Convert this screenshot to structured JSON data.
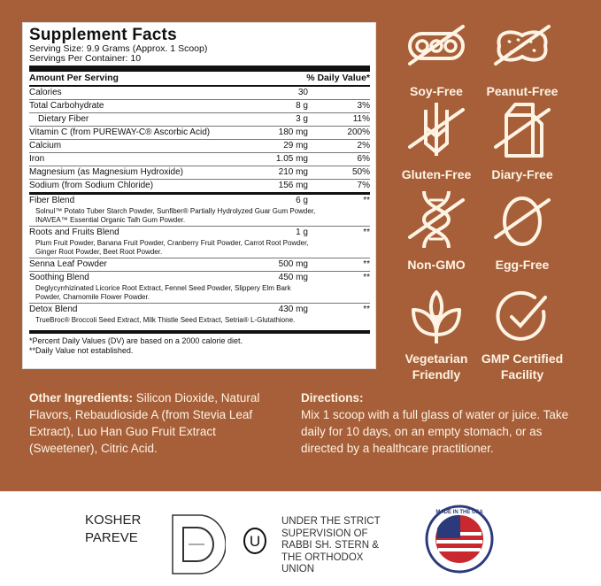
{
  "colors": {
    "background": "#a65f39",
    "icon": "#fff3e3"
  },
  "label": {
    "title": "Supplement Facts",
    "serving_size": "Serving Size: 9.9 Grams (Approx. 1 Scoop)",
    "servings_per_container": "Servings Per Container: 10",
    "header": {
      "amount": "Amount Per Serving",
      "dv": "% Daily Value*"
    },
    "nutrients": [
      {
        "name": "Calories",
        "amount": "30",
        "dv": ""
      },
      {
        "name": "Total Carbohydrate",
        "amount": "8 g",
        "dv": "3%"
      },
      {
        "name": "Dietary Fiber",
        "amount": "3 g",
        "dv": "11%"
      },
      {
        "name": "Vitamin C (from PUREWAY-C® Ascorbic Acid)",
        "amount": "180 mg",
        "dv": "200%"
      },
      {
        "name": "Calcium",
        "amount": "29 mg",
        "dv": "2%"
      },
      {
        "name": "Iron",
        "amount": "1.05 mg",
        "dv": "6%"
      },
      {
        "name": "Magnesium (as Magnesium Hydroxide)",
        "amount": "210 mg",
        "dv": "50%"
      },
      {
        "name": "Sodium (from Sodium Chloride)",
        "amount": "156 mg",
        "dv": "7%"
      }
    ],
    "blends": [
      {
        "name": "Fiber Blend",
        "amount": "6 g",
        "dv": "**",
        "detail": "Solnul™ Potato Tuber Starch Powder, Sunfiber® Partially Hydrolyzed Guar Gum Powder, INAVEA™ Essential Organic Talh Gum Powder."
      },
      {
        "name": "Roots and Fruits Blend",
        "amount": "1 g",
        "dv": "**",
        "detail": "Plum Fruit Powder, Banana Fruit Powder, Cranberry Fruit Powder, Carrot Root Powder, Ginger Root Powder, Beet Root Powder."
      },
      {
        "name": "Senna Leaf Powder",
        "amount": "500 mg",
        "dv": "**",
        "detail": ""
      },
      {
        "name": "Soothing Blend",
        "amount": "450 mg",
        "dv": "**",
        "detail": "Deglycyrrhizinated Licorice Root Extract, Fennel Seed Powder, Slippery Elm Bark Powder, Chamomile Flower Powder."
      },
      {
        "name": "Detox Blend",
        "amount": "430 mg",
        "dv": "**",
        "detail": "TrueBroc® Broccoli Seed Extract, Milk Thistle Seed Extract, Setria® L-Glutathione."
      }
    ],
    "footnote1": "*Percent Daily Values (DV) are based on a 2000 calorie diet.",
    "footnote2": "**Daily Value not established."
  },
  "badges": [
    {
      "label": "Soy-Free",
      "icon": "soy-free-icon"
    },
    {
      "label": "Peanut-Free",
      "icon": "peanut-free-icon"
    },
    {
      "label": "Gluten-Free",
      "icon": "gluten-free-icon"
    },
    {
      "label": "Diary-Free",
      "icon": "dairy-free-icon"
    },
    {
      "label": "Non-GMO",
      "icon": "non-gmo-icon"
    },
    {
      "label": "Egg-Free",
      "icon": "egg-free-icon"
    },
    {
      "label": "Vegetarian Friendly",
      "icon": "leaf-icon"
    },
    {
      "label": "GMP Certified Facility",
      "icon": "check-circle-icon"
    }
  ],
  "other_ingredients": {
    "heading": "Other Ingredients:",
    "text": " Silicon Dioxide, Natural Flavors, Rebaudioside A (from Stevia Leaf Extract), Luo Han Guo Fruit Extract (Sweetener), Citric Acid."
  },
  "directions": {
    "heading": "Directions:",
    "text": "Mix 1 scoop with a full glass of water or juice. Take daily for 10 days, on an empty stomach, or as directed by a healthcare practitioner."
  },
  "certifications": {
    "kosher_line1": "KOSHER",
    "kosher_line2": "PAREVE",
    "supervision": "UNDER THE STRICT SUPERVISION OF RABBI SH. STERN & THE ORTHODOX UNION",
    "ou_symbol": "U",
    "usa_seal": "MADE IN THE USA"
  }
}
